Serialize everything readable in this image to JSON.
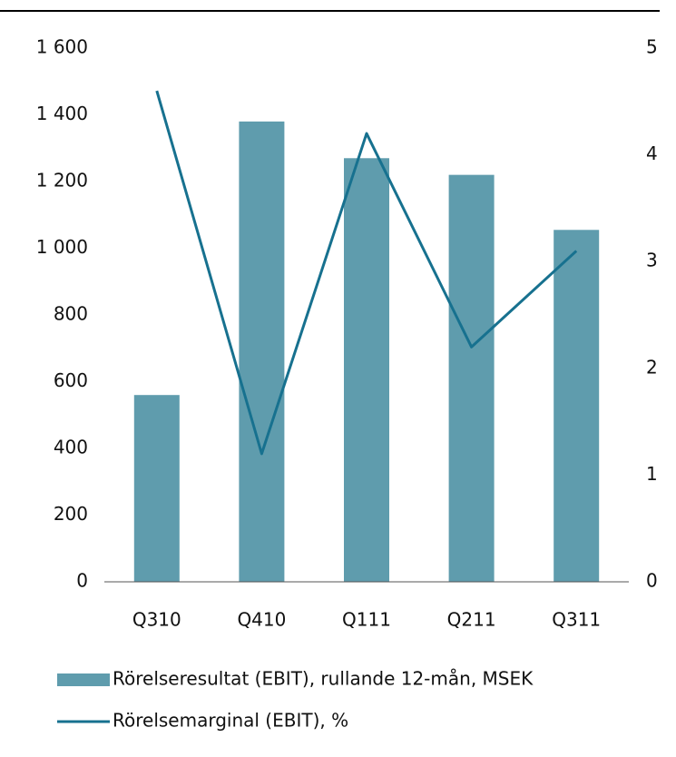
{
  "chart_data": {
    "type": "bar",
    "categories": [
      "Q310",
      "Q410",
      "Q111",
      "Q211",
      "Q311"
    ],
    "series": [
      {
        "name": "Rörelseresultat (EBIT), rullande 12-mån, MSEK",
        "type": "bar",
        "color": "#5f9cad",
        "values": [
          560,
          1380,
          1270,
          1220,
          1055
        ]
      },
      {
        "name": "Rörelsemarginal (EBIT), %",
        "type": "line",
        "axis": "y2",
        "color": "#17718f",
        "values": [
          4.6,
          1.2,
          4.2,
          2.2,
          3.1
        ]
      }
    ],
    "ylim": [
      0,
      1600
    ],
    "yticks": [
      0,
      200,
      400,
      600,
      800,
      {
        "value": 1000,
        "label": "1 000"
      },
      {
        "value": 1200,
        "label": "1 200"
      },
      {
        "value": 1400,
        "label": "1 400"
      },
      {
        "value": 1600,
        "label": "1 600"
      }
    ],
    "y2lim": [
      0,
      5
    ],
    "y2ticks": [
      0,
      1,
      2,
      3,
      4,
      5
    ],
    "legend": "bottom"
  }
}
